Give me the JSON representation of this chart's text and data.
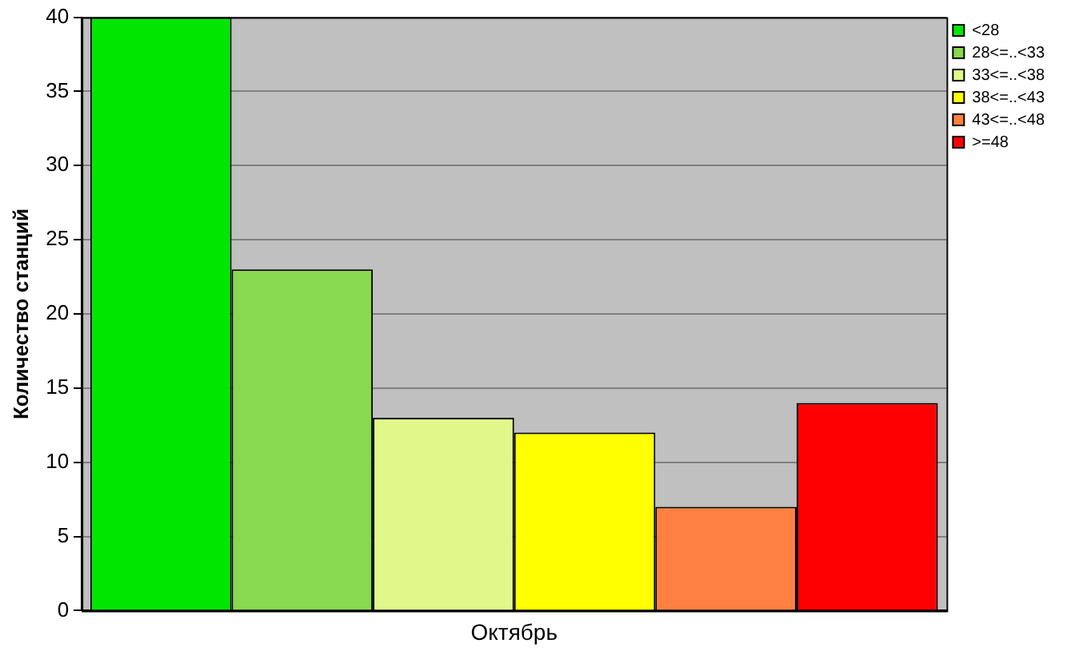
{
  "chart_data": {
    "type": "bar",
    "ylabel": "Количество станций",
    "categories": [
      "Октябрь"
    ],
    "series": [
      {
        "name": "<28",
        "color": "#00e600",
        "values": [
          40
        ]
      },
      {
        "name": "28<=..<33",
        "color": "#88d850",
        "values": [
          23
        ]
      },
      {
        "name": "33<=..<38",
        "color": "#e0f88a",
        "values": [
          13
        ]
      },
      {
        "name": "38<=..<43",
        "color": "#ffff00",
        "values": [
          12
        ]
      },
      {
        "name": "43<=..<48",
        "color": "#ff8040",
        "values": [
          7
        ]
      },
      {
        "name": ">=48",
        "color": "#ff0000",
        "values": [
          14
        ]
      }
    ],
    "ylim": [
      0,
      40
    ],
    "yticks": [
      0,
      5,
      10,
      15,
      20,
      25,
      30,
      35,
      40
    ],
    "grid": "y",
    "legend": "top right"
  }
}
